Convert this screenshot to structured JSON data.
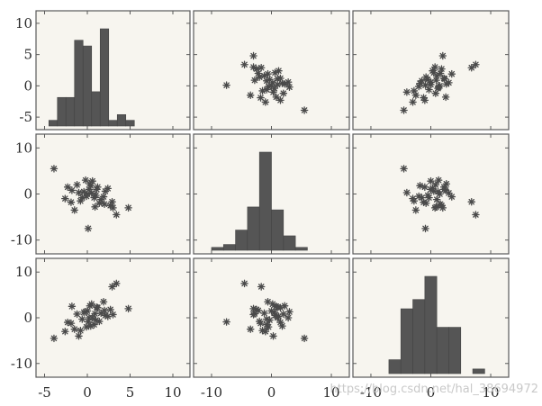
{
  "chart_data": {
    "type": "scatter-matrix",
    "title": "",
    "variables": [
      "",
      "",
      ""
    ],
    "col_xlim": [
      [
        -6,
        12
      ],
      [
        -13,
        13
      ],
      [
        -13,
        13
      ]
    ],
    "row_ylim": [
      [
        -7,
        12
      ],
      [
        -13,
        13
      ],
      [
        -13,
        13
      ]
    ],
    "x_ticks": [
      [
        -5,
        0,
        5,
        10
      ],
      [
        -10,
        0,
        10
      ],
      [
        -10,
        0,
        10
      ]
    ],
    "y_ticks": [
      [
        -5,
        0,
        5,
        10
      ],
      [
        -10,
        0,
        10
      ],
      [
        -10,
        0,
        10
      ]
    ],
    "x_tick_labels": [
      [
        "-5",
        "0",
        "5",
        "10"
      ],
      [
        "-10",
        "0",
        "10"
      ],
      [
        "-10",
        "0",
        "10"
      ]
    ],
    "y_tick_labels": [
      [
        "-5",
        "0",
        "5",
        "10"
      ],
      [
        "-10",
        "0",
        "10"
      ],
      [
        "-10",
        "0",
        "10"
      ]
    ],
    "histograms": [
      {
        "variable_index": 0,
        "bin_edges": [
          -4.5,
          -3.5,
          -2.5,
          -1.5,
          -0.5,
          0.5,
          1.5,
          2.5,
          3.5,
          4.5,
          5.5
        ],
        "counts": [
          1,
          5,
          5,
          15,
          14,
          6,
          17,
          1,
          2,
          1
        ]
      },
      {
        "variable_index": 1,
        "bin_edges": [
          -10,
          -8,
          -6,
          -4,
          -2,
          0,
          2,
          4,
          6
        ],
        "counts": [
          1,
          2,
          7,
          15,
          34,
          14,
          5,
          1
        ]
      },
      {
        "variable_index": 2,
        "bin_edges": [
          -7,
          -5,
          -3,
          -1,
          1,
          3,
          5,
          7,
          9
        ],
        "counts": [
          3,
          14,
          16,
          21,
          10,
          10,
          0,
          1
        ]
      }
    ],
    "variables_data": {
      "v1": [
        -3.9,
        -2.3,
        -1.8,
        -1.2,
        -0.4,
        -0.1,
        0.2,
        0.5,
        0.8,
        1.2,
        1.6,
        2.1,
        2.7,
        3.4,
        4.8,
        -2.6,
        -1.5,
        0.0,
        1.0,
        2.4,
        -0.8,
        0.6,
        1.9,
        -1.9,
        0.3,
        1.4,
        -0.2,
        2.9,
        -1.0,
        0.9,
        0.4,
        2.0,
        -0.6,
        1.1,
        3.0,
        0.1
      ],
      "v2": [
        5.5,
        1.5,
        0.8,
        2.0,
        0.5,
        -0.5,
        1.0,
        0.2,
        -0.8,
        1.5,
        -1.2,
        0.6,
        -2.5,
        -4.5,
        -3.0,
        -1.0,
        -3.5,
        0.0,
        -0.3,
        1.2,
        -1.5,
        2.8,
        -0.6,
        -1.8,
        2.2,
        -2.0,
        3.0,
        -1.7,
        0.3,
        -2.8,
        1.8,
        -2.2,
        -0.8,
        1.0,
        -3.0,
        -7.5
      ],
      "v3": [
        -4.5,
        -1.0,
        2.5,
        0.8,
        1.2,
        -2.0,
        0.0,
        3.0,
        -1.5,
        2.2,
        1.0,
        0.5,
        1.8,
        7.5,
        2.0,
        -3.0,
        -2.5,
        1.5,
        -0.5,
        0.3,
        -2.8,
        0.0,
        3.5,
        -1.2,
        2.6,
        -0.8,
        1.3,
        6.8,
        -4.0,
        0.9,
        -1.8,
        1.6,
        -0.3,
        2.3,
        0.7,
        -0.9
      ]
    }
  },
  "watermark": "https://blog.csdn.net/hal_38694972"
}
